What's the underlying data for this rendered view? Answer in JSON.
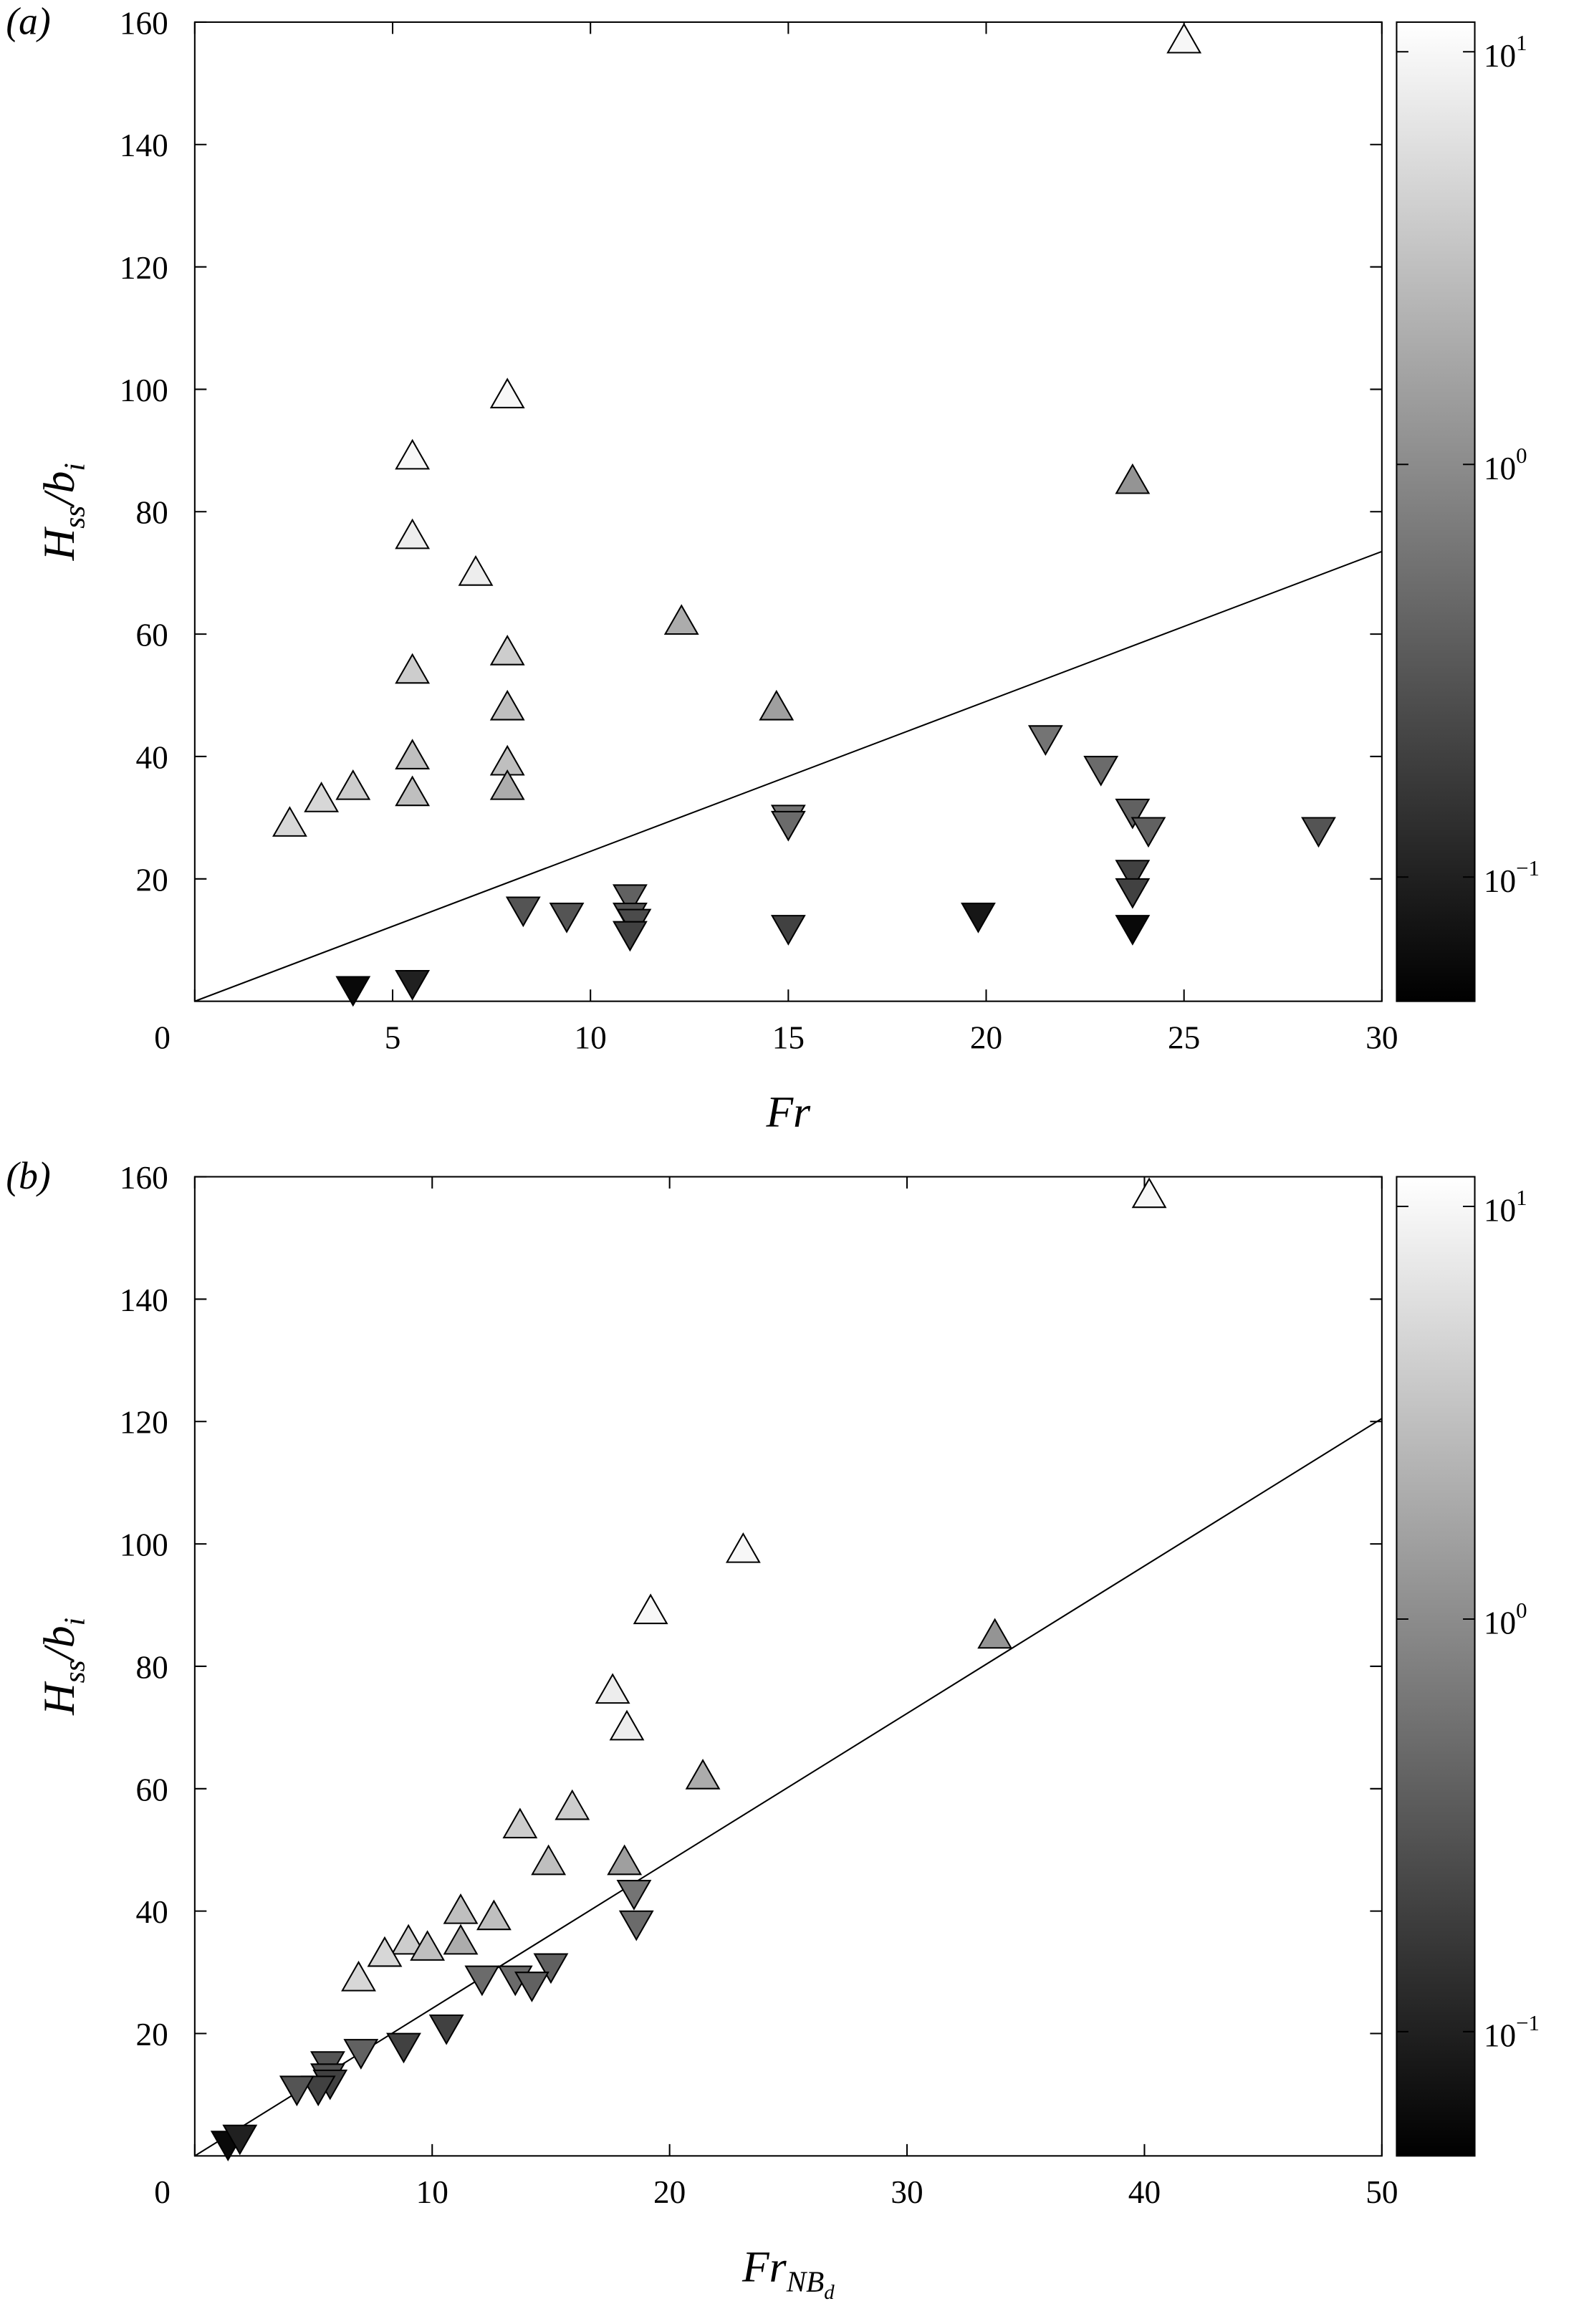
{
  "chart_data": [
    {
      "type": "scatter",
      "panel_label": "(a)",
      "xlabel": [
        {
          "text": "Fr"
        }
      ],
      "ylabel": [
        {
          "text": "H"
        },
        {
          "text": "ss",
          "sub": true
        },
        {
          "text": "/b"
        },
        {
          "text": "i",
          "sub": true
        }
      ],
      "xlim": [
        0,
        30
      ],
      "xticks": [
        0,
        5,
        10,
        15,
        20,
        25,
        30
      ],
      "ylim": [
        0,
        160
      ],
      "yticks": [
        20,
        40,
        60,
        80,
        100,
        120,
        140,
        160
      ],
      "colorbar": {
        "log": true,
        "clim": [
          0.05,
          11.8
        ],
        "ticks": [
          {
            "value": 10,
            "label": "10",
            "exponent": "1"
          },
          {
            "value": 1,
            "label": "10",
            "exponent": "0"
          },
          {
            "value": 0.1,
            "label": "10",
            "exponent": "−1"
          }
        ]
      },
      "line": {
        "x": [
          0,
          30
        ],
        "values": [
          0,
          73.5
        ]
      },
      "series": [
        {
          "marker": "triangle-up",
          "x": [
            2.4,
            3.2,
            4.0,
            5.5,
            5.5,
            5.5,
            5.5,
            5.5,
            7.1,
            7.9,
            7.9,
            7.9,
            7.9,
            7.9,
            12.3,
            14.7,
            25.0,
            23.7
          ],
          "values": [
            29,
            33,
            35,
            89,
            76,
            54,
            40,
            34,
            70,
            99,
            57,
            48,
            39,
            35,
            62,
            48,
            157,
            85
          ],
          "c": [
            5,
            5,
            4,
            10,
            8,
            4,
            3,
            3,
            8,
            10,
            4,
            3,
            3,
            2,
            2,
            1.5,
            10,
            1.2
          ]
        },
        {
          "marker": "triangle-down",
          "x": [
            4.0,
            5.5,
            8.3,
            9.4,
            11.0,
            11.0,
            11.1,
            11.0,
            15.0,
            15.0,
            15.0,
            19.8,
            21.5,
            22.9,
            23.7,
            23.7,
            23.7,
            23.7,
            24.1,
            28.4
          ],
          "values": [
            2,
            3,
            15,
            14,
            17,
            14,
            13,
            11,
            30,
            29,
            12,
            14,
            43,
            38,
            31,
            21,
            18,
            12,
            28,
            28
          ],
          "c": [
            0.06,
            0.1,
            0.3,
            0.3,
            0.4,
            0.3,
            0.25,
            0.2,
            0.6,
            0.5,
            0.2,
            0.08,
            0.6,
            0.5,
            0.4,
            0.2,
            0.2,
            0.06,
            0.4,
            0.3
          ]
        }
      ]
    },
    {
      "type": "scatter",
      "panel_label": "(b)",
      "xlabel": [
        {
          "text": "Fr"
        },
        {
          "text": "NB",
          "sub": true
        },
        {
          "text": "d",
          "subsub": true
        }
      ],
      "ylabel": [
        {
          "text": "H"
        },
        {
          "text": "ss",
          "sub": true
        },
        {
          "text": "/b"
        },
        {
          "text": "i",
          "sub": true
        }
      ],
      "xlim": [
        0,
        50
      ],
      "xticks": [
        0,
        10,
        20,
        30,
        40,
        50
      ],
      "ylim": [
        0,
        160
      ],
      "yticks": [
        20,
        40,
        60,
        80,
        100,
        120,
        140,
        160
      ],
      "colorbar": {
        "log": true,
        "clim": [
          0.05,
          11.8
        ],
        "ticks": [
          {
            "value": 10,
            "label": "10",
            "exponent": "1"
          },
          {
            "value": 1,
            "label": "10",
            "exponent": "0"
          },
          {
            "value": 0.1,
            "label": "10",
            "exponent": "−1"
          }
        ]
      },
      "line": {
        "x": [
          0,
          50
        ],
        "values": [
          0,
          120.5
        ]
      },
      "series": [
        {
          "marker": "triangle-up",
          "x": [
            40.2,
            23.1,
            19.2,
            17.6,
            18.2,
            33.7,
            21.4,
            15.9,
            13.7,
            14.9,
            18.1,
            11.2,
            12.6,
            11.2,
            9.0,
            8.0,
            9.8,
            6.9
          ],
          "values": [
            157,
            99,
            89,
            76,
            70,
            85,
            62,
            57,
            54,
            48,
            48,
            40,
            39,
            35,
            35,
            33,
            34,
            29
          ],
          "c": [
            10,
            10,
            10,
            8,
            8,
            1.2,
            2,
            4,
            4,
            3,
            1.5,
            3,
            3,
            2,
            4,
            5,
            3,
            5
          ]
        },
        {
          "marker": "triangle-down",
          "x": [
            18.5,
            18.6,
            15.0,
            12.1,
            13.5,
            14.2,
            10.6,
            8.8,
            7.0,
            5.6,
            5.6,
            5.7,
            5.2,
            4.3,
            1.4,
            1.9
          ],
          "values": [
            43,
            38,
            31,
            29,
            29,
            28,
            21,
            18,
            17,
            15,
            13,
            12,
            11,
            11,
            2,
            3
          ],
          "c": [
            0.6,
            0.5,
            0.4,
            0.5,
            0.5,
            0.4,
            0.2,
            0.2,
            0.4,
            0.3,
            0.3,
            0.2,
            0.2,
            0.3,
            0.06,
            0.1
          ]
        }
      ]
    }
  ]
}
